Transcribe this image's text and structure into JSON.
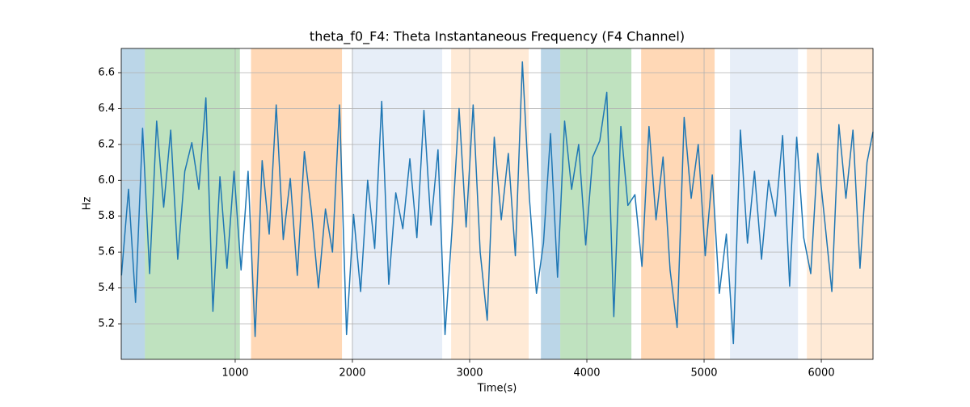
{
  "chart_data": {
    "type": "line",
    "title": "theta_f0_F4: Theta Instantaneous Frequency (F4 Channel)",
    "x_label": "Time(s)",
    "y_label": "Hz",
    "xlim": [
      28,
      6441
    ],
    "ylim": [
      5.002,
      6.735
    ],
    "xticks": [
      1000,
      2000,
      3000,
      4000,
      5000,
      6000
    ],
    "yticks": [
      5.2,
      5.4,
      5.6,
      5.8,
      {
        "value": 6,
        "label": "6.0"
      },
      6.2,
      6.4,
      6.6
    ],
    "grid": true,
    "spans": [
      {
        "start": 28,
        "end": 230,
        "color": "#1f77b4"
      },
      {
        "start": 230,
        "end": 1040,
        "color": "#2ca02c"
      },
      {
        "start": 1135,
        "end": 1911,
        "color": "#ff7f0e"
      },
      {
        "start": 1995,
        "end": 2766,
        "color": "#aec7e8"
      },
      {
        "start": 2842,
        "end": 3504,
        "color": "#ffbb78"
      },
      {
        "start": 3608,
        "end": 3773,
        "color": "#1f77b4"
      },
      {
        "start": 3773,
        "end": 4380,
        "color": "#2ca02c"
      },
      {
        "start": 4463,
        "end": 5090,
        "color": "#ff7f0e"
      },
      {
        "start": 5221,
        "end": 5801,
        "color": "#aec7e8"
      },
      {
        "start": 5877,
        "end": 6441,
        "color": "#ffbb78"
      }
    ],
    "x": [
      30,
      90,
      150,
      210,
      270,
      330,
      390,
      450,
      510,
      570,
      630,
      690,
      750,
      810,
      870,
      930,
      990,
      1050,
      1110,
      1170,
      1230,
      1290,
      1350,
      1410,
      1470,
      1530,
      1590,
      1650,
      1710,
      1770,
      1830,
      1890,
      1950,
      2010,
      2070,
      2130,
      2190,
      2250,
      2310,
      2370,
      2430,
      2490,
      2550,
      2610,
      2670,
      2730,
      2790,
      2850,
      2910,
      2970,
      3030,
      3090,
      3150,
      3210,
      3270,
      3330,
      3390,
      3450,
      3510,
      3570,
      3630,
      3690,
      3750,
      3810,
      3870,
      3930,
      3990,
      4050,
      4110,
      4170,
      4230,
      4290,
      4350,
      4410,
      4470,
      4530,
      4590,
      4650,
      4710,
      4770,
      4830,
      4890,
      4950,
      5010,
      5070,
      5130,
      5190,
      5250,
      5310,
      5370,
      5430,
      5490,
      5550,
      5610,
      5670,
      5730,
      5790,
      5850,
      5910,
      5970,
      6030,
      6090,
      6150,
      6210,
      6270,
      6330,
      6390,
      6441
    ],
    "series": [
      {
        "color": "#1f77b4",
        "values": [
          5.47,
          5.95,
          5.32,
          6.29,
          5.48,
          6.33,
          5.85,
          6.28,
          5.56,
          6.05,
          6.21,
          5.95,
          6.46,
          5.27,
          6.02,
          5.51,
          6.05,
          5.5,
          6.05,
          5.13,
          6.11,
          5.7,
          6.42,
          5.67,
          6.01,
          5.47,
          6.16,
          5.83,
          5.4,
          5.84,
          5.6,
          6.42,
          5.14,
          5.81,
          5.38,
          6.0,
          5.62,
          6.44,
          5.42,
          5.93,
          5.73,
          6.12,
          5.68,
          6.39,
          5.75,
          6.17,
          5.14,
          5.73,
          6.4,
          5.74,
          6.42,
          5.6,
          5.22,
          6.24,
          5.78,
          6.15,
          5.58,
          6.66,
          5.9,
          5.37,
          5.65,
          6.26,
          5.46,
          6.33,
          5.95,
          6.2,
          5.64,
          6.13,
          6.22,
          6.49,
          5.24,
          6.3,
          5.86,
          5.92,
          5.52,
          6.3,
          5.78,
          6.13,
          5.5,
          5.18,
          6.35,
          5.9,
          6.2,
          5.58,
          6.03,
          5.37,
          5.7,
          5.09,
          6.28,
          5.65,
          6.05,
          5.56,
          6.0,
          5.8,
          6.25,
          5.41,
          6.24,
          5.68,
          5.48,
          6.15,
          5.77,
          5.38,
          6.31,
          5.9,
          6.28,
          5.51,
          6.1,
          6.27
        ]
      }
    ]
  }
}
